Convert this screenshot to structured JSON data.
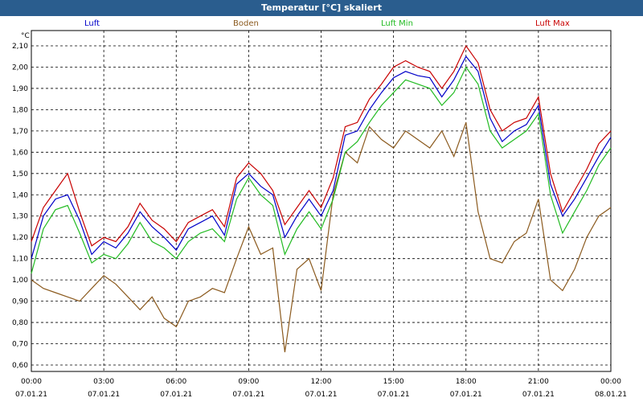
{
  "window": {
    "title": "Temperatur [°C] skaliert"
  },
  "chart_data": {
    "type": "line",
    "title": "Temperatur [°C] skaliert",
    "ylabel": "°C",
    "ylim": [
      0.6,
      2.15
    ],
    "xlim": [
      0,
      24
    ],
    "grid": true,
    "y_ticks": [
      "0,60",
      "0,70",
      "0,80",
      "0,90",
      "1,00",
      "1,10",
      "1,20",
      "1,30",
      "1,40",
      "1,50",
      "1,60",
      "1,70",
      "1,80",
      "1,90",
      "2,00",
      "2,10"
    ],
    "x_ticks": [
      {
        "time": "00:00",
        "date": "07.01.21"
      },
      {
        "time": "03:00",
        "date": "07.01.21"
      },
      {
        "time": "06:00",
        "date": "07.01.21"
      },
      {
        "time": "09:00",
        "date": "07.01.21"
      },
      {
        "time": "12:00",
        "date": "07.01.21"
      },
      {
        "time": "15:00",
        "date": "07.01.21"
      },
      {
        "time": "18:00",
        "date": "07.01.21"
      },
      {
        "time": "21:00",
        "date": "07.01.21"
      },
      {
        "time": "00:00",
        "date": "08.01.21"
      }
    ],
    "x": [
      0,
      0.5,
      1,
      1.5,
      2,
      2.5,
      3,
      3.5,
      4,
      4.5,
      5,
      5.5,
      6,
      6.5,
      7,
      7.5,
      8,
      8.5,
      9,
      9.5,
      10,
      10.5,
      11,
      11.5,
      12,
      12.5,
      13,
      13.5,
      14,
      14.5,
      15,
      15.5,
      16,
      16.5,
      17,
      17.5,
      18,
      18.5,
      19,
      19.5,
      20,
      20.5,
      21,
      21.5,
      22,
      22.5,
      23,
      23.5,
      24
    ],
    "series": [
      {
        "name": "Luft",
        "color": "#0000c8",
        "values": [
          1.1,
          1.3,
          1.38,
          1.4,
          1.28,
          1.12,
          1.18,
          1.15,
          1.22,
          1.32,
          1.25,
          1.2,
          1.14,
          1.24,
          1.27,
          1.3,
          1.21,
          1.45,
          1.5,
          1.44,
          1.4,
          1.2,
          1.3,
          1.38,
          1.3,
          1.42,
          1.68,
          1.7,
          1.8,
          1.88,
          1.95,
          1.98,
          1.96,
          1.95,
          1.86,
          1.94,
          2.05,
          1.98,
          1.76,
          1.65,
          1.7,
          1.73,
          1.82,
          1.45,
          1.3,
          1.38,
          1.48,
          1.58,
          1.67
        ]
      },
      {
        "name": "Boden",
        "color": "#8b5a1e",
        "values": [
          1.0,
          0.96,
          0.94,
          0.92,
          0.9,
          0.96,
          1.02,
          0.98,
          0.92,
          0.86,
          0.92,
          0.82,
          0.78,
          0.9,
          0.92,
          0.96,
          0.94,
          1.1,
          1.25,
          1.12,
          1.15,
          0.66,
          1.05,
          1.1,
          0.95,
          1.4,
          1.6,
          1.55,
          1.72,
          1.66,
          1.62,
          1.7,
          1.66,
          1.62,
          1.7,
          1.58,
          1.74,
          1.32,
          1.1,
          1.08,
          1.18,
          1.22,
          1.38,
          1.0,
          0.95,
          1.05,
          1.2,
          1.3,
          1.34
        ]
      },
      {
        "name": "Luft Min",
        "color": "#22bb22",
        "values": [
          1.03,
          1.24,
          1.33,
          1.35,
          1.22,
          1.08,
          1.12,
          1.1,
          1.17,
          1.27,
          1.18,
          1.15,
          1.1,
          1.18,
          1.22,
          1.24,
          1.18,
          1.38,
          1.48,
          1.4,
          1.35,
          1.12,
          1.24,
          1.32,
          1.24,
          1.38,
          1.6,
          1.65,
          1.74,
          1.82,
          1.88,
          1.94,
          1.92,
          1.9,
          1.82,
          1.88,
          2.0,
          1.92,
          1.7,
          1.62,
          1.66,
          1.7,
          1.78,
          1.4,
          1.22,
          1.32,
          1.42,
          1.54,
          1.62
        ]
      },
      {
        "name": "Luft Max",
        "color": "#c80000",
        "values": [
          1.18,
          1.34,
          1.42,
          1.5,
          1.32,
          1.16,
          1.2,
          1.18,
          1.25,
          1.36,
          1.28,
          1.24,
          1.18,
          1.27,
          1.3,
          1.33,
          1.25,
          1.48,
          1.55,
          1.5,
          1.42,
          1.26,
          1.34,
          1.42,
          1.34,
          1.48,
          1.72,
          1.74,
          1.85,
          1.92,
          2.0,
          2.03,
          2.0,
          1.98,
          1.9,
          1.98,
          2.1,
          2.02,
          1.8,
          1.7,
          1.74,
          1.76,
          1.86,
          1.5,
          1.32,
          1.42,
          1.52,
          1.64,
          1.7
        ]
      }
    ]
  }
}
